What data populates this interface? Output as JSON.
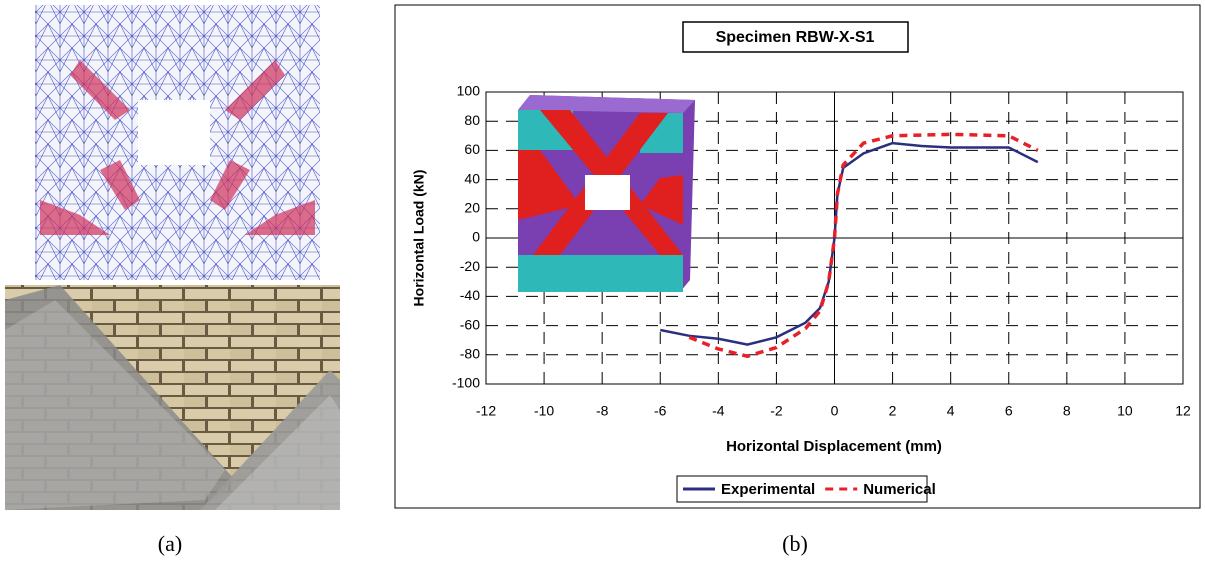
{
  "chart_data": {
    "type": "line",
    "title": "Specimen RBW-X-S1",
    "x_label": "Horizontal Displacement (mm)",
    "y_label": "Horizontal Load (kN)",
    "xlim": [
      -12,
      12
    ],
    "xticks": [
      -12,
      -10,
      -8,
      -6,
      -4,
      -2,
      0,
      2,
      4,
      6,
      8,
      10,
      12
    ],
    "ylim": [
      -100,
      100
    ],
    "yticks": [
      -100,
      -80,
      -60,
      -40,
      -20,
      0,
      20,
      40,
      60,
      80,
      100
    ],
    "grid": true,
    "legend": "bottom",
    "series": [
      {
        "name": "Experimental",
        "color": "#2b2f7f",
        "dash": "solid",
        "x": [
          -6,
          -5,
          -4,
          -3.5,
          -3,
          -2,
          -1,
          -0.5,
          -0.2,
          0,
          0.1,
          0.3,
          1,
          2,
          3,
          4,
          5,
          6,
          7
        ],
        "values": [
          -63,
          -67,
          -69,
          -71,
          -73,
          -68,
          -58,
          -48,
          -30,
          0,
          30,
          48,
          58,
          65,
          63,
          62,
          62,
          62,
          52
        ]
      },
      {
        "name": "Numerical",
        "color": "#e8202a",
        "dash": "dashed",
        "x": [
          -5,
          -4,
          -3,
          -2,
          -1,
          -0.5,
          -0.2,
          0,
          0.1,
          0.3,
          1,
          2,
          4,
          6,
          7
        ],
        "values": [
          -68,
          -76,
          -81,
          -75,
          -62,
          -50,
          -30,
          0,
          30,
          50,
          65,
          70,
          71,
          70,
          60
        ]
      }
    ]
  },
  "captions": [
    "(a)",
    "(b)"
  ]
}
